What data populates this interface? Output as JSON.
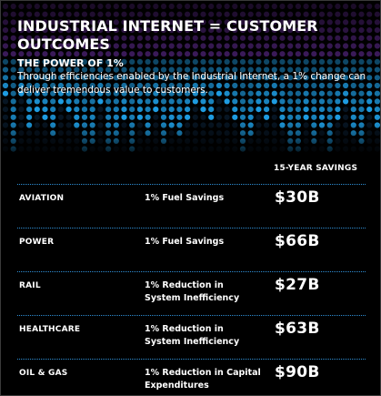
{
  "header": {
    "title": "INDUSTRIAL INTERNET = CUSTOMER OUTCOMES",
    "subtitle": "THE POWER OF 1%",
    "description": "Through efficiencies enabled by the Industrial Internet, a 1% change can deliver tremendous value to customers."
  },
  "table": {
    "column_header": "15-YEAR SAVINGS",
    "rows": [
      {
        "sector": "AVIATION",
        "benefit": "1% Fuel Savings",
        "savings": "$30B"
      },
      {
        "sector": "POWER",
        "benefit": "1% Fuel Savings",
        "savings": "$66B"
      },
      {
        "sector": "RAIL",
        "benefit": "1% Reduction in System Inefficiency",
        "savings": "$27B"
      },
      {
        "sector": "HEALTHCARE",
        "benefit": "1% Reduction in System Inefficiency",
        "savings": "$63B"
      },
      {
        "sector": "OIL & GAS",
        "benefit": "1% Reduction in Capital Expenditures",
        "savings": "$90B"
      }
    ]
  },
  "colors": {
    "background": "#000000",
    "accent_blue": "#1e9be0",
    "accent_purple": "#6a2fa0",
    "divider": "#2f8fd6"
  }
}
